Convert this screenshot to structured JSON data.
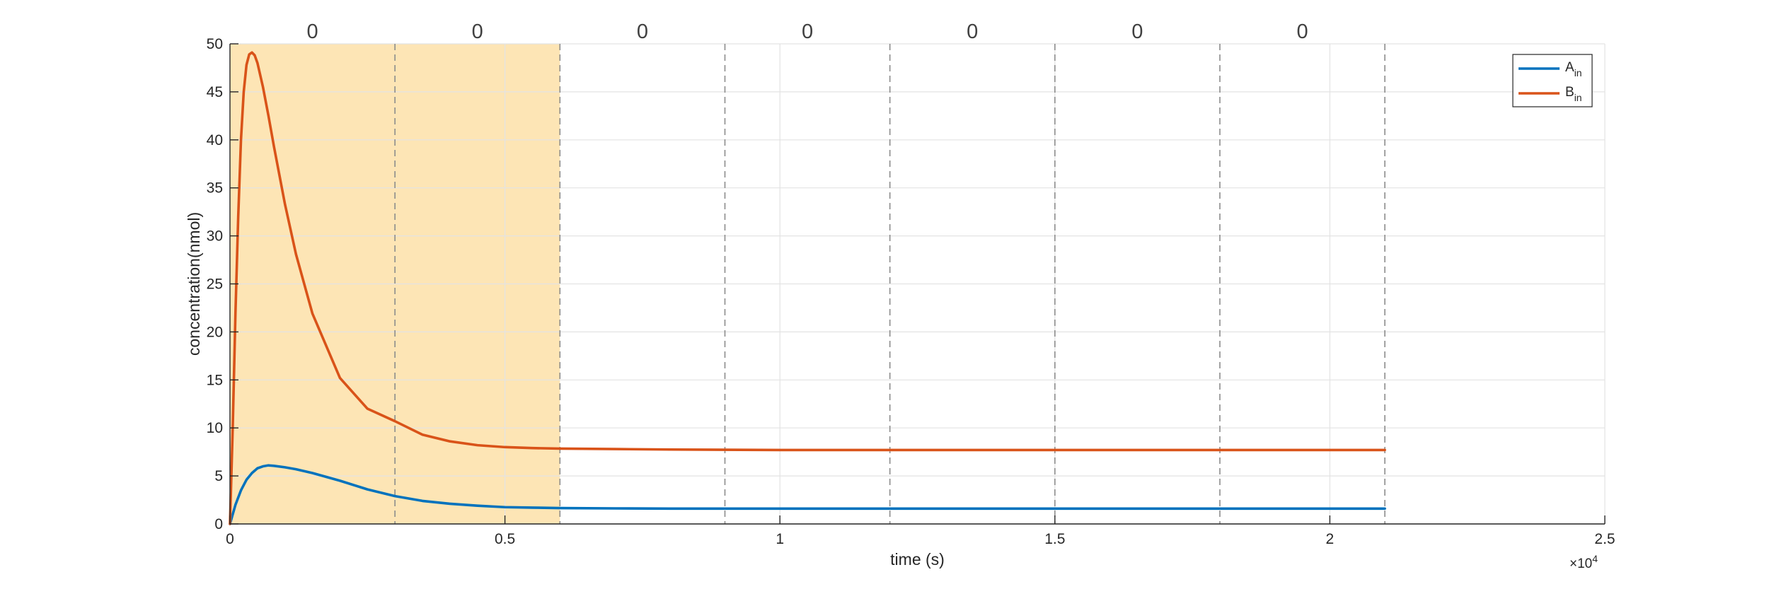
{
  "chart_data": {
    "type": "line",
    "xlabel": "time (s)",
    "ylabel": "concentration(nmol)",
    "x_exponent_label": {
      "base": "×10",
      "exp": "4"
    },
    "xlim": [
      0,
      25000
    ],
    "ylim": [
      0,
      50
    ],
    "x_scale_factor": 10000,
    "xticks": [
      0,
      0.5,
      1,
      1.5,
      2,
      2.5
    ],
    "yticks": [
      0,
      5,
      10,
      15,
      20,
      25,
      30,
      35,
      40,
      45,
      50
    ],
    "grid": true,
    "legend_position": "top-right",
    "shaded_region": {
      "x_start": 0,
      "x_end": 6000,
      "color": "#FDE5B5"
    },
    "phase_boundaries": [
      3000,
      6000,
      9000,
      12000,
      15000,
      18000,
      21000
    ],
    "phase_labels": [
      {
        "x": 1500,
        "text": "0"
      },
      {
        "x": 4500,
        "text": "0"
      },
      {
        "x": 7500,
        "text": "0"
      },
      {
        "x": 10500,
        "text": "0"
      },
      {
        "x": 13500,
        "text": "0"
      },
      {
        "x": 16500,
        "text": "0"
      },
      {
        "x": 19500,
        "text": "0"
      }
    ],
    "series": [
      {
        "name": "A",
        "name_sub": "in",
        "color": "#0072BD",
        "x": [
          0,
          100,
          200,
          300,
          400,
          500,
          600,
          700,
          800,
          1000,
          1200,
          1500,
          2000,
          2500,
          3000,
          3500,
          4000,
          4500,
          5000,
          5500,
          6000,
          7000,
          8000,
          10000,
          12000,
          14000,
          16000,
          18000,
          20000,
          21000
        ],
        "y": [
          0,
          2.0,
          3.5,
          4.6,
          5.3,
          5.8,
          6.0,
          6.1,
          6.05,
          5.9,
          5.7,
          5.3,
          4.5,
          3.6,
          2.9,
          2.4,
          2.1,
          1.9,
          1.75,
          1.7,
          1.65,
          1.62,
          1.6,
          1.6,
          1.6,
          1.6,
          1.6,
          1.6,
          1.6,
          1.6
        ]
      },
      {
        "name": "B",
        "name_sub": "in",
        "color": "#D95319",
        "x": [
          0,
          50,
          100,
          150,
          200,
          250,
          300,
          350,
          400,
          450,
          500,
          600,
          700,
          800,
          1000,
          1200,
          1500,
          2000,
          2500,
          3000,
          3500,
          4000,
          4500,
          5000,
          5500,
          6000,
          7000,
          8000,
          10000,
          12000,
          14000,
          16000,
          18000,
          20000,
          21000
        ],
        "y": [
          0,
          10,
          22,
          32,
          40,
          45,
          47.8,
          48.9,
          49.1,
          48.8,
          48.0,
          45.5,
          42.5,
          39.3,
          33.3,
          28.1,
          21.9,
          15.2,
          12.0,
          10.7,
          9.3,
          8.6,
          8.2,
          8.0,
          7.9,
          7.85,
          7.8,
          7.75,
          7.7,
          7.7,
          7.7,
          7.7,
          7.7,
          7.7,
          7.7
        ]
      }
    ]
  }
}
